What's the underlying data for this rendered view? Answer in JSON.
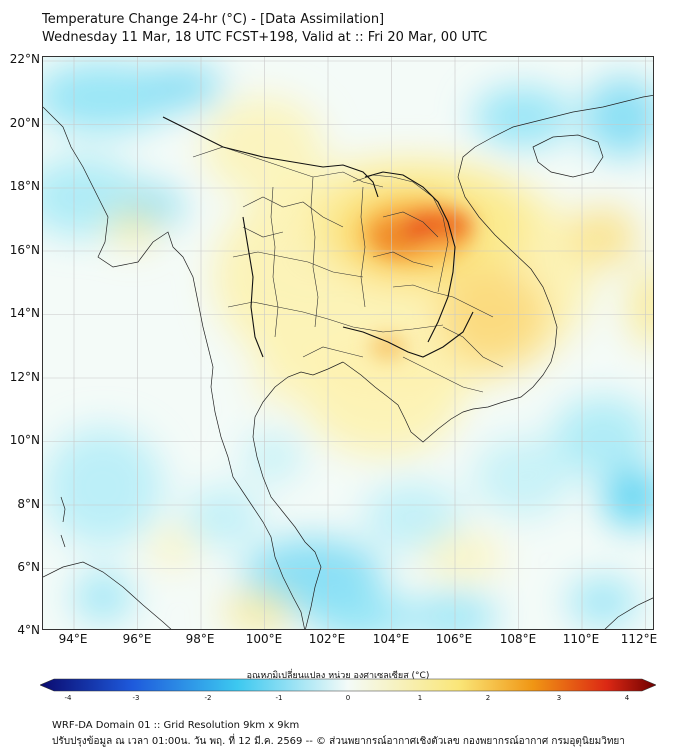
{
  "header": {
    "title_line1": "Temperature Change 24-hr (°C) - [Data Assimilation]",
    "title_line2": "Wednesday 11 Mar, 18 UTC FCST+198, Valid at :: Fri 20 Mar, 00 UTC"
  },
  "map": {
    "lat_labels": [
      "22°N",
      "20°N",
      "18°N",
      "16°N",
      "14°N",
      "12°N",
      "10°N",
      "8°N",
      "6°N",
      "4°N"
    ],
    "lon_labels": [
      "94°E",
      "96°E",
      "98°E",
      "100°E",
      "102°E",
      "104°E",
      "106°E",
      "108°E",
      "110°E",
      "112°E"
    ]
  },
  "colorbar": {
    "title": "อุณหภูมิเปลี่ยนแปลง หน่วย องศาเซลเซียส (°C)",
    "ticks": [
      "-4",
      "-3",
      "-2",
      "-1",
      "0",
      "1",
      "2",
      "3",
      "4"
    ],
    "colors": {
      "cold_end": "#0a0a6e",
      "cold": "#1e5adc",
      "cool": "#3cc8f0",
      "neutral": "#f4fbf8",
      "warm": "#fae678",
      "hot": "#f09614",
      "hotter": "#dc2814",
      "hot_end": "#6e0000"
    }
  },
  "footer": {
    "line1": "WRF-DA Domain 01 :: Grid Resolution 9km x 9km",
    "line2": "ปรับปรุงข้อมูล ณ เวลา 01:00น. วัน พฤ. ที่ 12 มี.ค. 2569 -- © ส่วนพยากรณ์อากาศเชิงตัวเลข กองพยากรณ์อากาศ กรมอุตุนิยมวิทยา"
  }
}
